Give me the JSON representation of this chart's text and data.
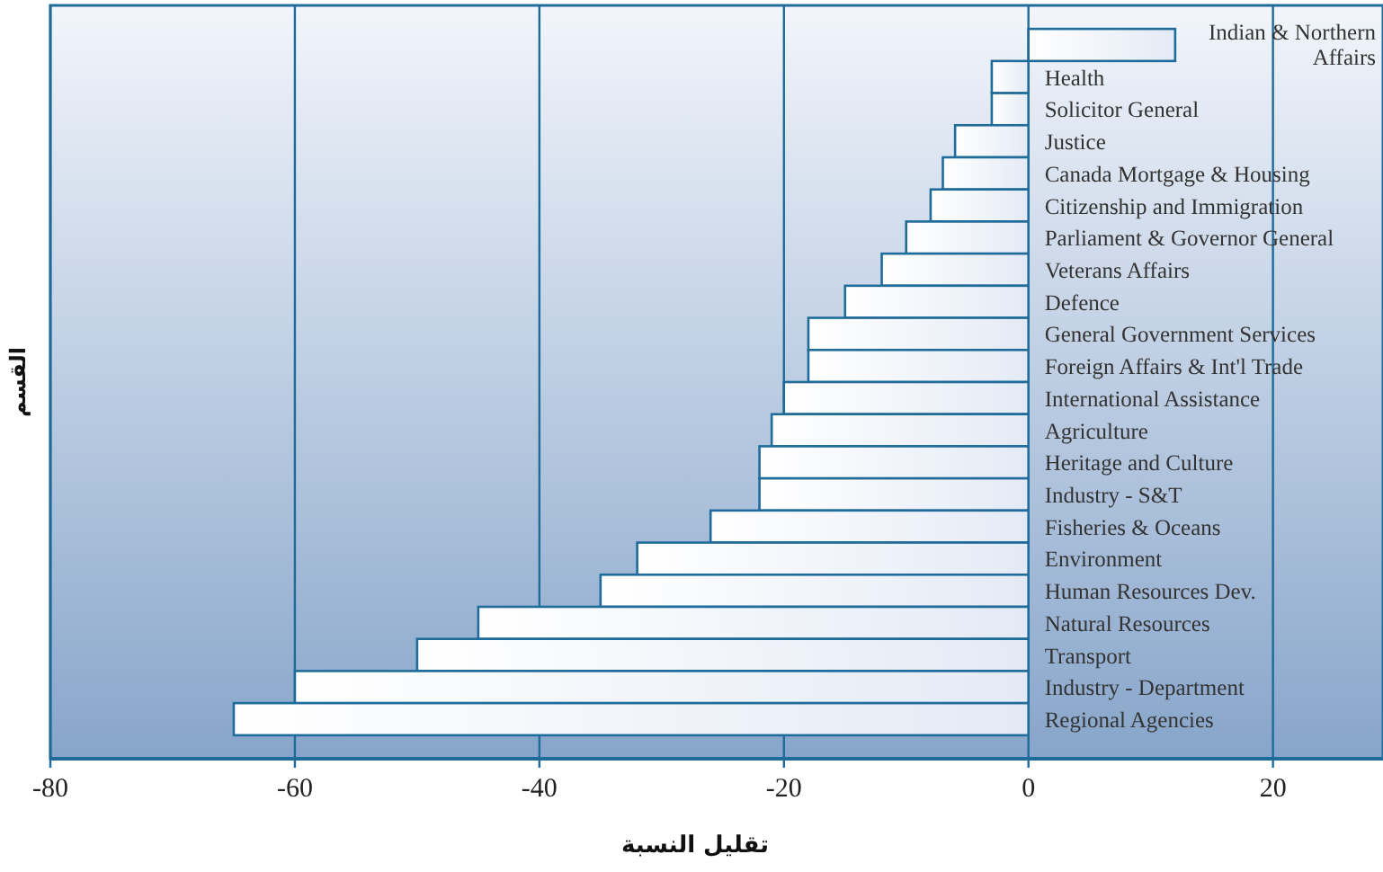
{
  "chart_data": {
    "type": "bar",
    "orientation": "horizontal",
    "xlabel": "تقليل النسبة",
    "ylabel": "القسم",
    "categories": [
      "Indian & Northern Affairs",
      "Health",
      "Solicitor General",
      "Justice",
      "Canada Mortgage & Housing",
      "Citizenship and Immigration",
      "Parliament & Governor General",
      "Veterans Affairs",
      "Defence",
      "General Government Services",
      "Foreign Affairs & Int'l Trade",
      "International Assistance",
      "Agriculture",
      "Heritage and Culture",
      "Industry - S&T",
      "Fisheries & Oceans",
      "Environment",
      "Human Resources Dev.",
      "Natural Resources",
      "Transport",
      "Industry - Department",
      "Regional Agencies"
    ],
    "values": [
      12,
      -3,
      -3,
      -6,
      -7,
      -8,
      -10,
      -12,
      -15,
      -18,
      -18,
      -20,
      -21,
      -22,
      -22,
      -26,
      -32,
      -35,
      -45,
      -50,
      -60,
      -65
    ],
    "color": "#1f6b9a",
    "xlim": [
      -80,
      29
    ],
    "xticks": [
      -80,
      -60,
      -40,
      -20,
      0,
      20
    ],
    "grid": "x",
    "tick_labels": "x"
  }
}
